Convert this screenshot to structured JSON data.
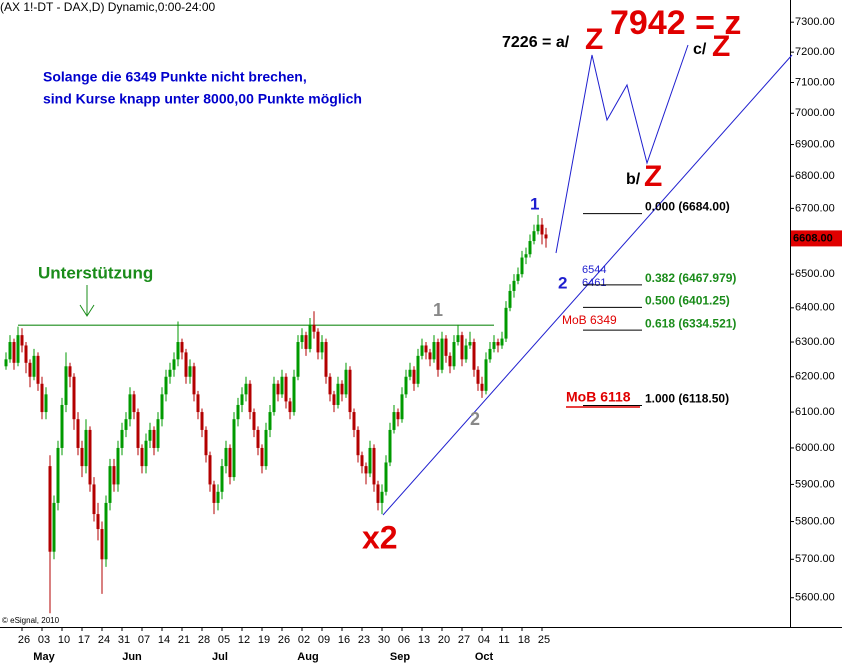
{
  "chart_data": {
    "type": "candlestick",
    "title": "(AX 1!-DT - DAX,D) Dynamic,0:00-24:00",
    "log_scale": true,
    "up_color": "#009a00",
    "down_color": "#b30000",
    "ylim": [
      5525,
      7375
    ],
    "xlim": [
      -1.5,
      196
    ],
    "yticks": [
      {
        "value": 5600,
        "label": "5600.00"
      },
      {
        "value": 5700,
        "label": "5700.00"
      },
      {
        "value": 5800,
        "label": "5800.00"
      },
      {
        "value": 5900,
        "label": "5900.00"
      },
      {
        "value": 6000,
        "label": "6000.00"
      },
      {
        "value": 6100,
        "label": "6100.00"
      },
      {
        "value": 6200,
        "label": "6200.00"
      },
      {
        "value": 6300,
        "label": "6300.00"
      },
      {
        "value": 6400,
        "label": "6400.00"
      },
      {
        "value": 6500,
        "label": "6500.00"
      },
      {
        "value": 6600,
        "label": "6600.00"
      },
      {
        "value": 6700,
        "label": "6700.00"
      },
      {
        "value": 6800,
        "label": "6800.00"
      },
      {
        "value": 6900,
        "label": "6900.00"
      },
      {
        "value": 7000,
        "label": "7000.00"
      },
      {
        "value": 7100,
        "label": "7100.00"
      },
      {
        "value": 7200,
        "label": "7200.00"
      },
      {
        "value": 7300,
        "label": "7300.00"
      }
    ],
    "xticks": [
      {
        "value": 4,
        "label": "26"
      },
      {
        "value": 9,
        "label": "03"
      },
      {
        "value": 14,
        "label": "10"
      },
      {
        "value": 19,
        "label": "17"
      },
      {
        "value": 24,
        "label": "24"
      },
      {
        "value": 29,
        "label": "31"
      },
      {
        "value": 34,
        "label": "07"
      },
      {
        "value": 39,
        "label": "14"
      },
      {
        "value": 44,
        "label": "21"
      },
      {
        "value": 49,
        "label": "28"
      },
      {
        "value": 54,
        "label": "05"
      },
      {
        "value": 59,
        "label": "12"
      },
      {
        "value": 64,
        "label": "19"
      },
      {
        "value": 69,
        "label": "26"
      },
      {
        "value": 74,
        "label": "02"
      },
      {
        "value": 79,
        "label": "09"
      },
      {
        "value": 84,
        "label": "16"
      },
      {
        "value": 89,
        "label": "23"
      },
      {
        "value": 94,
        "label": "30"
      },
      {
        "value": 99,
        "label": "06"
      },
      {
        "value": 104,
        "label": "13"
      },
      {
        "value": 109,
        "label": "20"
      },
      {
        "value": 114,
        "label": "27"
      },
      {
        "value": 119,
        "label": "04"
      },
      {
        "value": 124,
        "label": "11"
      },
      {
        "value": 129,
        "label": "18"
      },
      {
        "value": 134,
        "label": "25"
      }
    ],
    "month_ticks": [
      {
        "value": 9,
        "label": "May"
      },
      {
        "value": 31,
        "label": "Jun"
      },
      {
        "value": 53,
        "label": "Jul"
      },
      {
        "value": 75,
        "label": "Aug"
      },
      {
        "value": 98,
        "label": "Sep"
      },
      {
        "value": 119,
        "label": "Oct"
      }
    ],
    "ohlc": [
      [
        6230,
        6270,
        6220,
        6250
      ],
      [
        6250,
        6320,
        6240,
        6300
      ],
      [
        6300,
        6310,
        6220,
        6240
      ],
      [
        6240,
        6345,
        6230,
        6320
      ],
      [
        6320,
        6340,
        6270,
        6290
      ],
      [
        6290,
        6300,
        6210,
        6240
      ],
      [
        6240,
        6250,
        6170,
        6200
      ],
      [
        6200,
        6280,
        6190,
        6260
      ],
      [
        6260,
        6270,
        6160,
        6180
      ],
      [
        6180,
        6200,
        6080,
        6100
      ],
      [
        6100,
        6170,
        6080,
        6150
      ],
      [
        5950,
        5980,
        5560,
        5720
      ],
      [
        5720,
        5870,
        5700,
        5850
      ],
      [
        5850,
        6020,
        5830,
        6000
      ],
      [
        6000,
        6140,
        5980,
        6120
      ],
      [
        6120,
        6270,
        6100,
        6230
      ],
      [
        6230,
        6240,
        6170,
        6200
      ],
      [
        6200,
        6210,
        6050,
        6080
      ],
      [
        6080,
        6100,
        5980,
        6000
      ],
      [
        6000,
        6020,
        5920,
        5950
      ],
      [
        5950,
        6080,
        5930,
        6050
      ],
      [
        6050,
        6060,
        5880,
        5900
      ],
      [
        5900,
        5920,
        5800,
        5820
      ],
      [
        5820,
        5850,
        5750,
        5780
      ],
      [
        5780,
        5800,
        5610,
        5700
      ],
      [
        5700,
        5870,
        5680,
        5850
      ],
      [
        5850,
        5970,
        5830,
        5950
      ],
      [
        5950,
        5970,
        5880,
        5900
      ],
      [
        5900,
        6020,
        5880,
        6000
      ],
      [
        6000,
        6070,
        5980,
        6050
      ],
      [
        6050,
        6100,
        6030,
        6080
      ],
      [
        6080,
        6170,
        6060,
        6150
      ],
      [
        6150,
        6160,
        6080,
        6100
      ],
      [
        6100,
        6110,
        5980,
        6000
      ],
      [
        6000,
        6010,
        5930,
        5950
      ],
      [
        5950,
        6040,
        5930,
        6020
      ],
      [
        6020,
        6070,
        6000,
        6050
      ],
      [
        6050,
        6060,
        5980,
        6000
      ],
      [
        6000,
        6100,
        5990,
        6080
      ],
      [
        6080,
        6170,
        6060,
        6150
      ],
      [
        6150,
        6220,
        6130,
        6200
      ],
      [
        6200,
        6240,
        6180,
        6220
      ],
      [
        6220,
        6270,
        6200,
        6250
      ],
      [
        6250,
        6360,
        6230,
        6300
      ],
      [
        6300,
        6310,
        6250,
        6270
      ],
      [
        6270,
        6280,
        6180,
        6200
      ],
      [
        6200,
        6250,
        6180,
        6230
      ],
      [
        6230,
        6240,
        6130,
        6150
      ],
      [
        6150,
        6160,
        6080,
        6100
      ],
      [
        6100,
        6110,
        6030,
        6050
      ],
      [
        6050,
        6060,
        5960,
        5980
      ],
      [
        5980,
        5990,
        5880,
        5900
      ],
      [
        5900,
        5910,
        5820,
        5850
      ],
      [
        5850,
        5900,
        5830,
        5880
      ],
      [
        5880,
        5970,
        5860,
        5950
      ],
      [
        5950,
        6020,
        5930,
        6000
      ],
      [
        6000,
        6010,
        5900,
        5920
      ],
      [
        5920,
        6100,
        5910,
        6080
      ],
      [
        6080,
        6140,
        6060,
        6120
      ],
      [
        6120,
        6170,
        6100,
        6150
      ],
      [
        6150,
        6200,
        6130,
        6180
      ],
      [
        6180,
        6190,
        6080,
        6100
      ],
      [
        6100,
        6110,
        6030,
        6050
      ],
      [
        6050,
        6060,
        5980,
        6000
      ],
      [
        6000,
        6010,
        5930,
        5950
      ],
      [
        5950,
        6070,
        5940,
        6050
      ],
      [
        6050,
        6120,
        6030,
        6100
      ],
      [
        6100,
        6200,
        6090,
        6180
      ],
      [
        6180,
        6190,
        6130,
        6150
      ],
      [
        6150,
        6220,
        6140,
        6200
      ],
      [
        6200,
        6210,
        6110,
        6130
      ],
      [
        6130,
        6140,
        6080,
        6100
      ],
      [
        6100,
        6220,
        6090,
        6200
      ],
      [
        6200,
        6320,
        6190,
        6300
      ],
      [
        6300,
        6340,
        6280,
        6320
      ],
      [
        6320,
        6330,
        6260,
        6280
      ],
      [
        6280,
        6370,
        6270,
        6350
      ],
      [
        6350,
        6390,
        6310,
        6330
      ],
      [
        6330,
        6340,
        6250,
        6270
      ],
      [
        6270,
        6320,
        6250,
        6300
      ],
      [
        6300,
        6310,
        6180,
        6200
      ],
      [
        6200,
        6210,
        6130,
        6150
      ],
      [
        6150,
        6160,
        6100,
        6120
      ],
      [
        6120,
        6200,
        6110,
        6180
      ],
      [
        6180,
        6190,
        6130,
        6150
      ],
      [
        6150,
        6240,
        6140,
        6220
      ],
      [
        6220,
        6230,
        6080,
        6100
      ],
      [
        6100,
        6110,
        6030,
        6050
      ],
      [
        6050,
        6060,
        5960,
        5980
      ],
      [
        5980,
        5990,
        5930,
        5950
      ],
      [
        5950,
        5960,
        5900,
        5930
      ],
      [
        5930,
        6020,
        5920,
        6000
      ],
      [
        6000,
        6010,
        5880,
        5900
      ],
      [
        5900,
        5910,
        5830,
        5850
      ],
      [
        5850,
        5900,
        5820,
        5880
      ],
      [
        5880,
        5980,
        5870,
        5960
      ],
      [
        5960,
        6070,
        5950,
        6050
      ],
      [
        6050,
        6120,
        6040,
        6100
      ],
      [
        6100,
        6110,
        6060,
        6080
      ],
      [
        6080,
        6170,
        6070,
        6150
      ],
      [
        6150,
        6220,
        6140,
        6200
      ],
      [
        6200,
        6240,
        6190,
        6220
      ],
      [
        6220,
        6230,
        6160,
        6180
      ],
      [
        6180,
        6280,
        6170,
        6260
      ],
      [
        6260,
        6310,
        6250,
        6290
      ],
      [
        6290,
        6300,
        6250,
        6270
      ],
      [
        6270,
        6280,
        6230,
        6250
      ],
      [
        6250,
        6320,
        6240,
        6300
      ],
      [
        6300,
        6310,
        6200,
        6220
      ],
      [
        6220,
        6330,
        6210,
        6310
      ],
      [
        6310,
        6320,
        6240,
        6260
      ],
      [
        6260,
        6270,
        6210,
        6230
      ],
      [
        6230,
        6320,
        6220,
        6300
      ],
      [
        6300,
        6350,
        6290,
        6320
      ],
      [
        6320,
        6330,
        6230,
        6250
      ],
      [
        6250,
        6310,
        6240,
        6290
      ],
      [
        6290,
        6330,
        6280,
        6300
      ],
      [
        6300,
        6310,
        6200,
        6220
      ],
      [
        6220,
        6230,
        6160,
        6180
      ],
      [
        6180,
        6200,
        6140,
        6160
      ],
      [
        6160,
        6270,
        6150,
        6250
      ],
      [
        6250,
        6300,
        6240,
        6280
      ],
      [
        6280,
        6320,
        6270,
        6300
      ],
      [
        6300,
        6310,
        6270,
        6290
      ],
      [
        6290,
        6330,
        6280,
        6310
      ],
      [
        6310,
        6420,
        6300,
        6400
      ],
      [
        6400,
        6470,
        6390,
        6450
      ],
      [
        6450,
        6500,
        6430,
        6480
      ],
      [
        6480,
        6520,
        6470,
        6500
      ],
      [
        6500,
        6570,
        6490,
        6550
      ],
      [
        6550,
        6580,
        6530,
        6560
      ],
      [
        6560,
        6620,
        6550,
        6600
      ],
      [
        6600,
        6650,
        6590,
        6630
      ],
      [
        6630,
        6680,
        6620,
        6650
      ],
      [
        6650,
        6670,
        6590,
        6620
      ],
      [
        6620,
        6640,
        6580,
        6608
      ]
    ],
    "last_price": {
      "value": 6608,
      "label": "6608.00"
    },
    "support_level": 6349,
    "support_color": "#1a8c1a",
    "fib_levels": [
      {
        "value": 6684,
        "label": "0.000 (6684.00)",
        "color": "#000000"
      },
      {
        "value": 6467.979,
        "label": "0.382 (6467.979)",
        "color": "#1a8c1a"
      },
      {
        "value": 6401.25,
        "label": "0.500 (6401.25)",
        "color": "#1a8c1a"
      },
      {
        "value": 6334.521,
        "label": "0.618 (6334.521)",
        "color": "#1a8c1a"
      },
      {
        "value": 6118.5,
        "label": "1.000 (6118.50)",
        "color": "#000000"
      }
    ],
    "annotations": {
      "a_text": "7226 = a/",
      "a_z": "Z",
      "z_target": "7942 = z",
      "c_text": "c/",
      "c_z": "Z",
      "b_text": "b/",
      "b_z": "Z",
      "wave1_blue": "1",
      "wave2_blue": "2",
      "level_6544": "6544",
      "level_6461": "6461",
      "mob_6349": "MoB 6349",
      "mob_6118": "MoB 6118",
      "wave1_gray": "1",
      "wave2_gray": "2",
      "x2": "x2",
      "support": "Unterstützung",
      "note_line1": "Solange die 6349 Punkte nicht brechen,",
      "note_line2": "sind Kurse knapp unter 8000,00 Punkte möglich",
      "copyright": "© eSignal, 2010"
    }
  }
}
